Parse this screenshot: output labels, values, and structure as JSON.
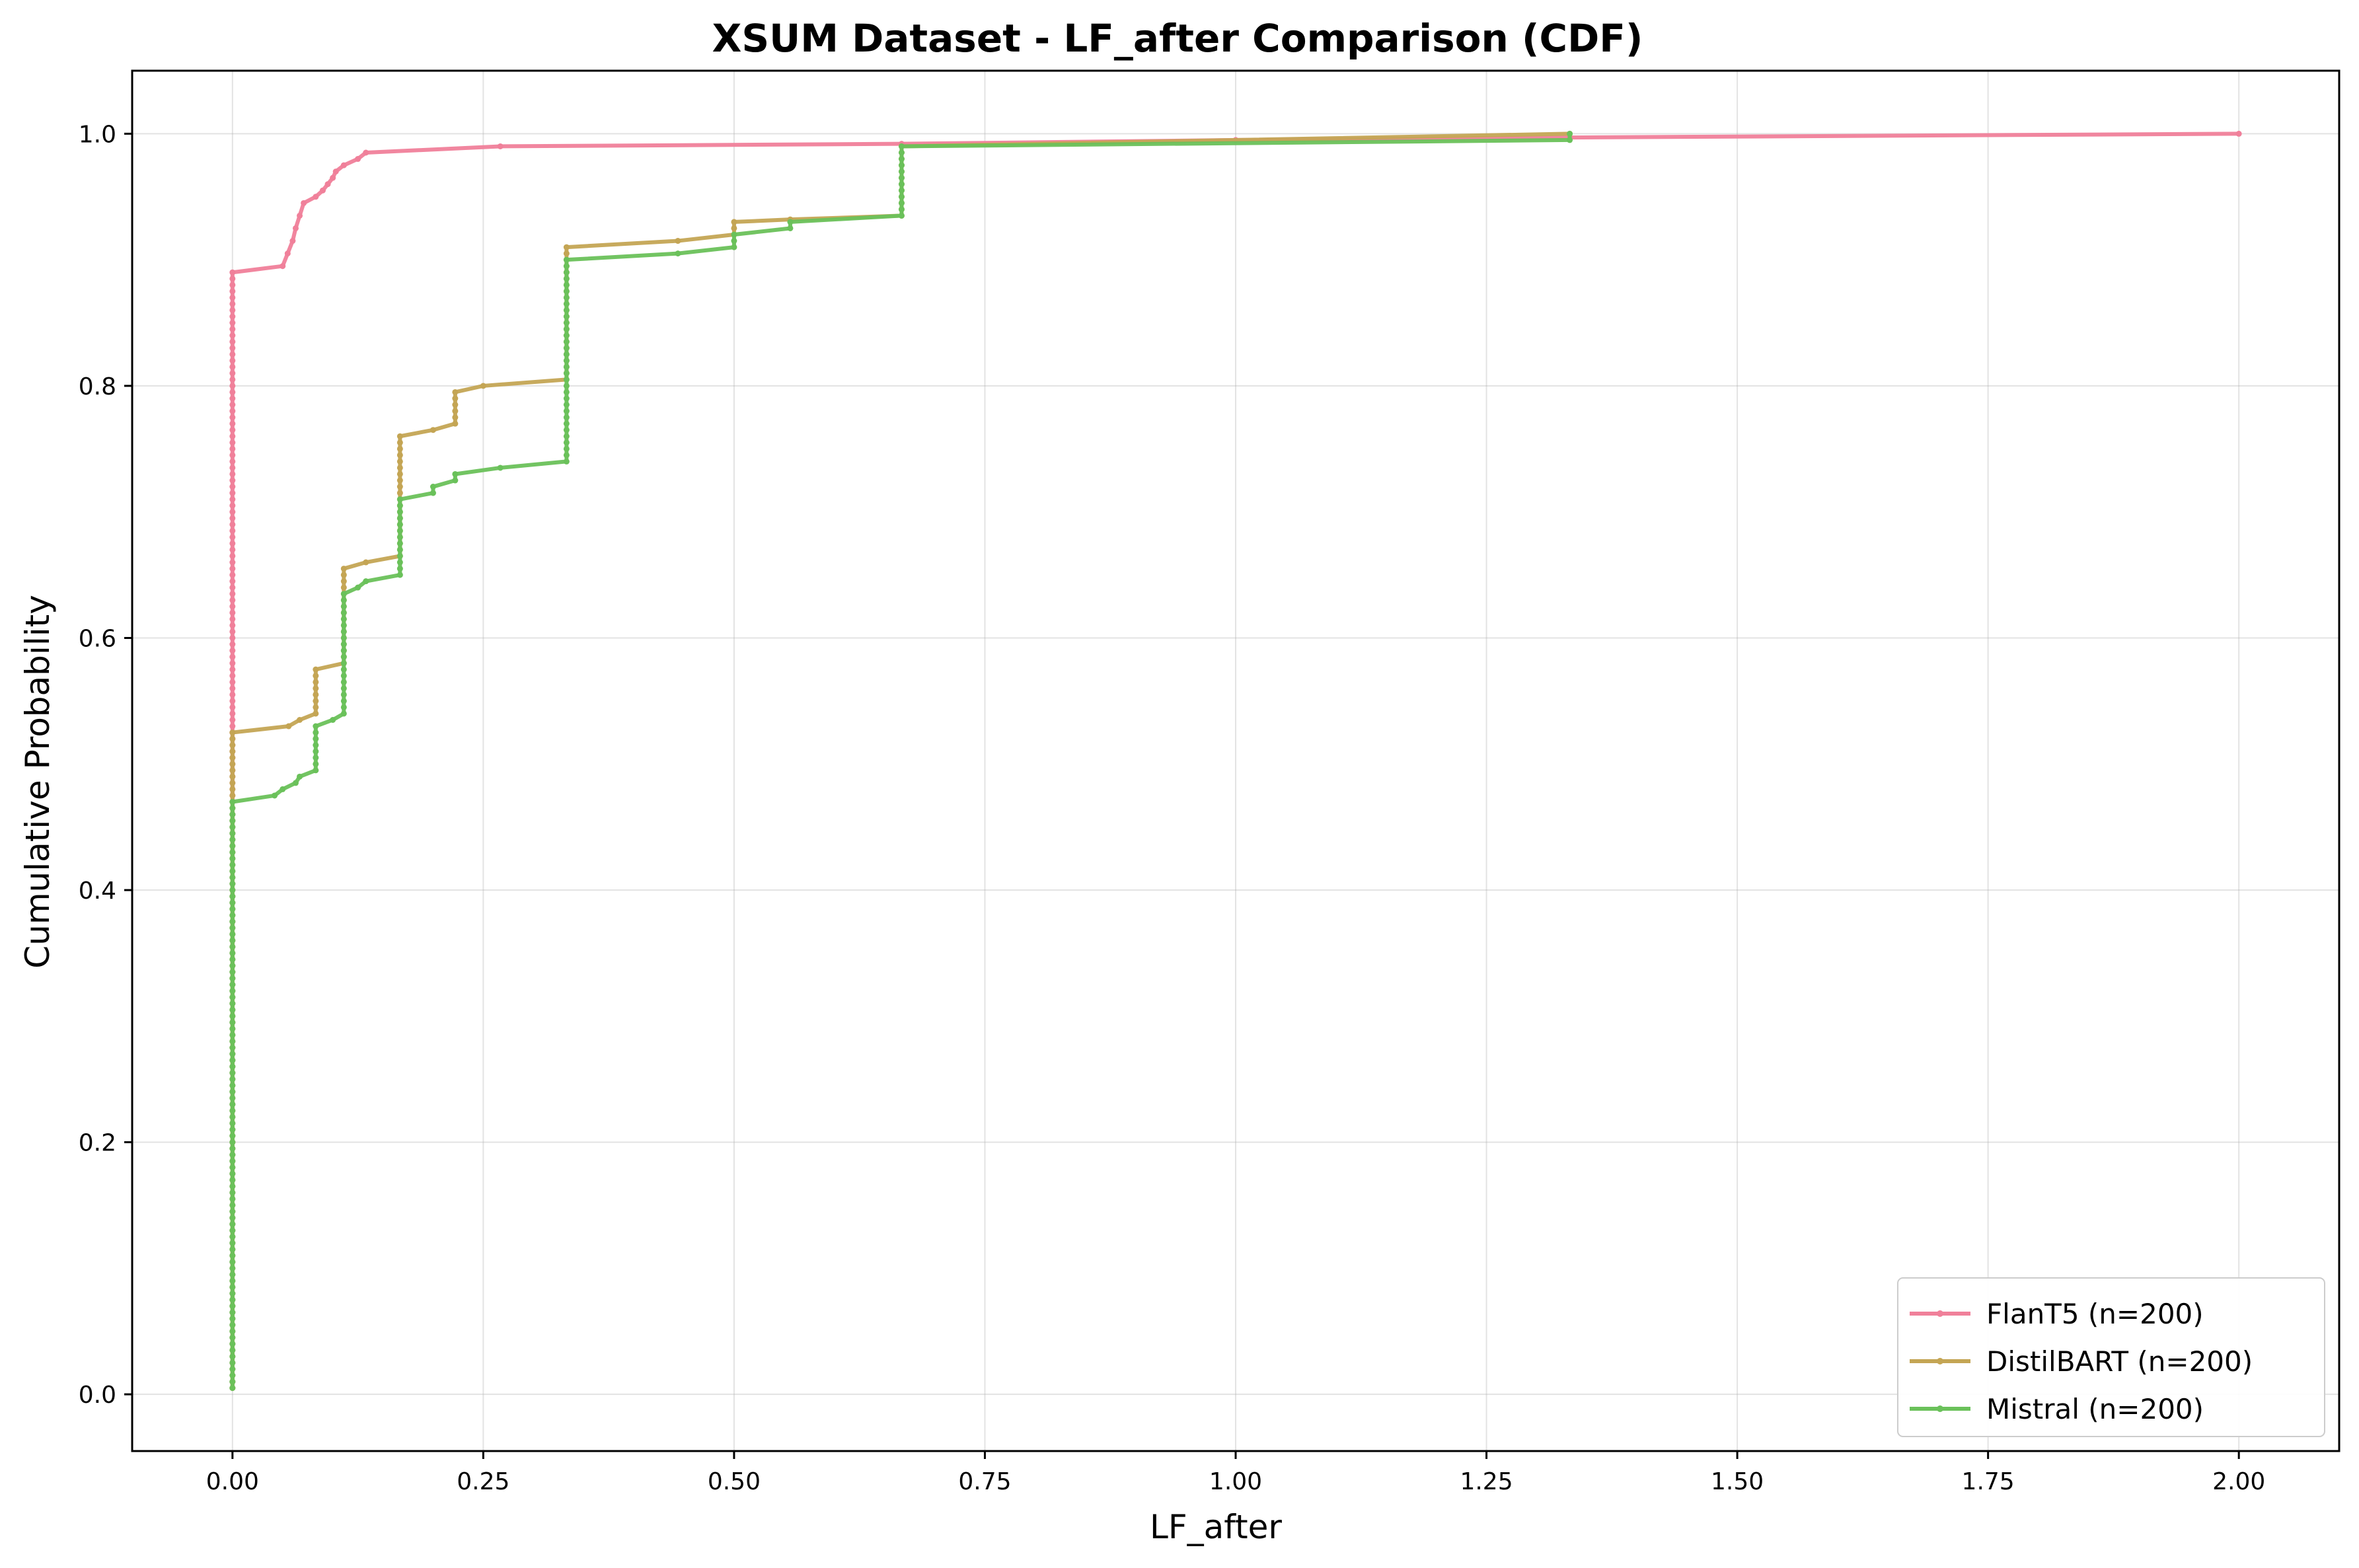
{
  "chart_data": {
    "type": "line",
    "title": "XSUM Dataset - LF_after Comparison (CDF)",
    "xlabel": "LF_after",
    "ylabel": "Cumulative Probability",
    "xlim": [
      -0.1,
      2.1
    ],
    "ylim": [
      -0.045,
      1.05
    ],
    "x_ticks": [
      "0.00",
      "0.25",
      "0.50",
      "0.75",
      "1.00",
      "1.25",
      "1.50",
      "1.75",
      "2.00"
    ],
    "x_tick_values": [
      0,
      0.25,
      0.5,
      0.75,
      1.0,
      1.25,
      1.5,
      1.75,
      2.0
    ],
    "y_ticks": [
      "0.0",
      "0.2",
      "0.4",
      "0.6",
      "0.8",
      "1.0"
    ],
    "y_tick_values": [
      0,
      0.2,
      0.4,
      0.6,
      0.8,
      1.0
    ],
    "grid": true,
    "legend_position": "lower-right",
    "series": [
      {
        "name": "FlanT5 (n=200)",
        "color": "#f0809a",
        "points": [
          [
            0,
            0.005
          ],
          [
            0,
            0.89
          ],
          [
            0.05,
            0.895
          ],
          [
            0.055,
            0.905
          ],
          [
            0.06,
            0.915
          ],
          [
            0.063,
            0.925
          ],
          [
            0.067,
            0.935
          ],
          [
            0.071,
            0.945
          ],
          [
            0.083,
            0.95
          ],
          [
            0.09,
            0.955
          ],
          [
            0.095,
            0.96
          ],
          [
            0.1,
            0.965
          ],
          [
            0.103,
            0.97
          ],
          [
            0.111,
            0.975
          ],
          [
            0.125,
            0.98
          ],
          [
            0.133,
            0.985
          ],
          [
            0.267,
            0.99
          ],
          [
            0.667,
            0.992
          ],
          [
            1.0,
            0.995
          ],
          [
            1.333,
            0.997
          ],
          [
            2.0,
            1.0
          ]
        ]
      },
      {
        "name": "DistilBART (n=200)",
        "color": "#c4a554",
        "points": [
          [
            0,
            0.005
          ],
          [
            0,
            0.525
          ],
          [
            0.056,
            0.53
          ],
          [
            0.067,
            0.535
          ],
          [
            0.083,
            0.54
          ],
          [
            0.083,
            0.575
          ],
          [
            0.111,
            0.58
          ],
          [
            0.111,
            0.655
          ],
          [
            0.133,
            0.66
          ],
          [
            0.167,
            0.665
          ],
          [
            0.167,
            0.76
          ],
          [
            0.2,
            0.765
          ],
          [
            0.222,
            0.77
          ],
          [
            0.222,
            0.795
          ],
          [
            0.25,
            0.8
          ],
          [
            0.333,
            0.805
          ],
          [
            0.333,
            0.91
          ],
          [
            0.444,
            0.915
          ],
          [
            0.5,
            0.92
          ],
          [
            0.5,
            0.93
          ],
          [
            0.556,
            0.932
          ],
          [
            0.667,
            0.935
          ],
          [
            0.667,
            0.99
          ],
          [
            1.333,
            1.0
          ]
        ]
      },
      {
        "name": "Mistral (n=200)",
        "color": "#6ac15a",
        "points": [
          [
            0,
            0.005
          ],
          [
            0,
            0.47
          ],
          [
            0.042,
            0.475
          ],
          [
            0.05,
            0.48
          ],
          [
            0.063,
            0.485
          ],
          [
            0.067,
            0.49
          ],
          [
            0.083,
            0.495
          ],
          [
            0.083,
            0.53
          ],
          [
            0.1,
            0.535
          ],
          [
            0.111,
            0.54
          ],
          [
            0.111,
            0.635
          ],
          [
            0.125,
            0.64
          ],
          [
            0.133,
            0.645
          ],
          [
            0.167,
            0.65
          ],
          [
            0.167,
            0.71
          ],
          [
            0.2,
            0.715
          ],
          [
            0.2,
            0.72
          ],
          [
            0.222,
            0.725
          ],
          [
            0.222,
            0.73
          ],
          [
            0.267,
            0.735
          ],
          [
            0.333,
            0.74
          ],
          [
            0.333,
            0.9
          ],
          [
            0.444,
            0.905
          ],
          [
            0.5,
            0.91
          ],
          [
            0.5,
            0.92
          ],
          [
            0.556,
            0.925
          ],
          [
            0.556,
            0.93
          ],
          [
            0.667,
            0.935
          ],
          [
            0.667,
            0.99
          ],
          [
            1.333,
            0.995
          ],
          [
            1.333,
            1.0
          ]
        ]
      }
    ]
  }
}
